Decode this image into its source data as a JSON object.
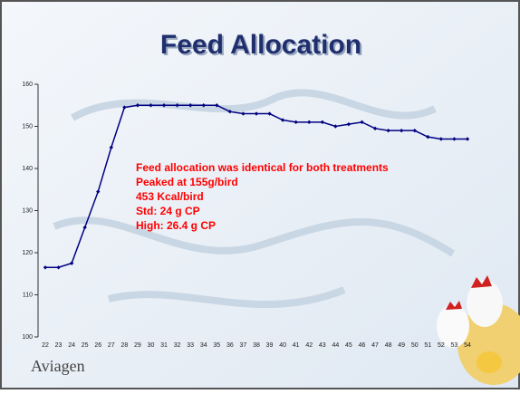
{
  "chart_data": {
    "type": "line",
    "title": "Feed Allocation",
    "annotations": [
      "Feed allocation was identical for both treatments",
      "Peaked at 155g/bird",
      "453 Kcal/bird",
      "Std: 24 g CP",
      "High: 26.4 g CP"
    ],
    "categories": [
      "22",
      "23",
      "24",
      "25",
      "26",
      "27",
      "28",
      "29",
      "30",
      "31",
      "32",
      "33",
      "34",
      "35",
      "36",
      "37",
      "38",
      "39",
      "40",
      "41",
      "42",
      "43",
      "44",
      "45",
      "46",
      "47",
      "48",
      "49",
      "50",
      "51",
      "52",
      "53",
      "54"
    ],
    "series": [
      {
        "color": "#000080",
        "values": [
          116.5,
          116.5,
          117.5,
          126,
          134.5,
          145,
          154.5,
          155,
          155,
          155,
          155,
          155,
          155,
          155,
          153.5,
          153,
          153,
          153,
          151.5,
          151,
          151,
          151,
          150,
          150.5,
          151,
          149.5,
          149,
          149,
          149,
          147.5,
          147,
          147,
          147
        ]
      }
    ],
    "ylim": [
      100,
      160
    ],
    "yticks": [
      100,
      110,
      120,
      130,
      140,
      150,
      160
    ]
  },
  "logo": "Aviagen"
}
